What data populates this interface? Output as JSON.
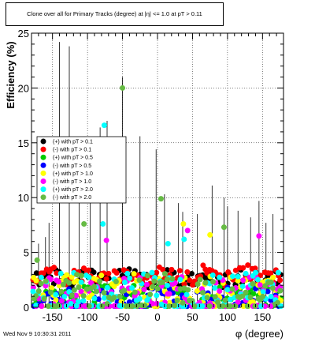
{
  "chart_data": {
    "type": "scatter",
    "title": "Clone  over all for Primary Tracks (degree) at |η| <= 1.0 at pT > 0.11",
    "xlabel": "φ (degree)",
    "ylabel": "Efficiency (%)",
    "xlim": [
      -180,
      180
    ],
    "ylim": [
      0,
      25
    ],
    "x_ticks": [
      -150,
      -100,
      -50,
      0,
      50,
      100,
      150
    ],
    "y_ticks": [
      0,
      5,
      10,
      15,
      20,
      25
    ],
    "grid": true,
    "legend_position": "left",
    "series": [
      {
        "name": "(+) with pT > 0.1",
        "color": "#000000",
        "base": 2.6,
        "amp": 0.7,
        "seed": 1
      },
      {
        "name": "(-) with pT > 0.1",
        "color": "#ff0000",
        "base": 2.9,
        "amp": 0.7,
        "seed": 2
      },
      {
        "name": "(+) with pT > 0.5",
        "color": "#00cc00",
        "base": 0.9,
        "amp": 1.2,
        "seed": 3
      },
      {
        "name": "(-) with pT > 0.5",
        "color": "#0000ff",
        "base": 0.7,
        "amp": 1.1,
        "seed": 4
      },
      {
        "name": "(+) with pT > 1.0",
        "color": "#ffff00",
        "base": 1.3,
        "amp": 1.8,
        "seed": 5
      },
      {
        "name": "(-) with pT > 1.0",
        "color": "#ff00ff",
        "base": 1.0,
        "amp": 1.8,
        "seed": 6
      },
      {
        "name": "(+) with pT > 2.0",
        "color": "#00ffff",
        "base": 1.2,
        "amp": 2.0,
        "seed": 7
      },
      {
        "name": "(-) with pT > 2.0",
        "color": "#66bb44",
        "base": 1.2,
        "amp": 2.0,
        "seed": 8
      }
    ],
    "highlights": [
      {
        "series": 7,
        "x": -50,
        "y": 20.0
      },
      {
        "series": 6,
        "x": -76,
        "y": 16.6
      },
      {
        "series": 7,
        "x": 5,
        "y": 9.9
      },
      {
        "series": 7,
        "x": -105,
        "y": 7.6
      },
      {
        "series": 6,
        "x": -78,
        "y": 7.6
      },
      {
        "series": 7,
        "x": 95,
        "y": 7.3
      },
      {
        "series": 4,
        "x": 37,
        "y": 7.6
      },
      {
        "series": 5,
        "x": 43,
        "y": 7.0
      },
      {
        "series": 6,
        "x": 38,
        "y": 6.2
      },
      {
        "series": 5,
        "x": -73,
        "y": 6.1
      },
      {
        "series": 5,
        "x": 145,
        "y": 6.5
      },
      {
        "series": 4,
        "x": 75,
        "y": 6.6
      },
      {
        "series": 6,
        "x": 15,
        "y": 5.8
      },
      {
        "series": 7,
        "x": -172,
        "y": 4.3
      }
    ]
  },
  "footer": "Wed Nov  9 10:30:31 2011"
}
